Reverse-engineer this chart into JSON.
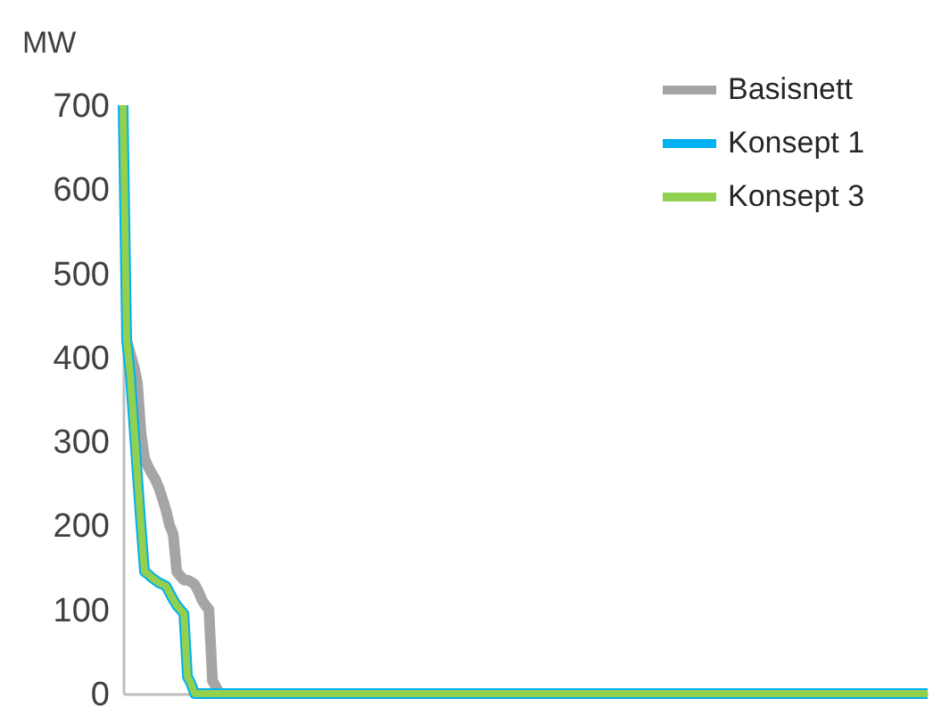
{
  "chart_data": {
    "type": "line",
    "ylabel": "MW",
    "ylim": [
      0,
      700
    ],
    "yticks": [
      0,
      100,
      200,
      300,
      400,
      500,
      600,
      700
    ],
    "grid": false,
    "legend": "top right",
    "marker": "none",
    "line_style": "solid",
    "categories": [
      null,
      null,
      null,
      null,
      null,
      null,
      null,
      null,
      null,
      null,
      null,
      null,
      null,
      null,
      null,
      null,
      null,
      null,
      null,
      null,
      null,
      null,
      null,
      null,
      null,
      null,
      null,
      null,
      null,
      null,
      null,
      null,
      null,
      null,
      null,
      null,
      null,
      null,
      null,
      null,
      null,
      null,
      null,
      null,
      null,
      null,
      null,
      null,
      null,
      null,
      null,
      null,
      null,
      null,
      null,
      null,
      null,
      null,
      null,
      null,
      null,
      null,
      null,
      null,
      null,
      null,
      null,
      null,
      null,
      null,
      null,
      null,
      null,
      null,
      null,
      null,
      null,
      null,
      null,
      null,
      null,
      null,
      null,
      null,
      null,
      null,
      null,
      null,
      null,
      null,
      null,
      null,
      null,
      null,
      null,
      null,
      null,
      null,
      null,
      null,
      null,
      null,
      null,
      null,
      null,
      null,
      null,
      null,
      null,
      null,
      null,
      null,
      null,
      null,
      null,
      null,
      null,
      null,
      null,
      null,
      null,
      null,
      null,
      null,
      null,
      null,
      null,
      null,
      null,
      null,
      null,
      null,
      null,
      null,
      null,
      null,
      null,
      null,
      null,
      null,
      null,
      null,
      null,
      null,
      null,
      null,
      null,
      null,
      null,
      null,
      null,
      null,
      null,
      null,
      null,
      null,
      null,
      null,
      null,
      null,
      null,
      null,
      null,
      null,
      null,
      null,
      null,
      null,
      null,
      null,
      null,
      null,
      null,
      null,
      null,
      null,
      null,
      null,
      null,
      null,
      null,
      null,
      null,
      null,
      null,
      null,
      null,
      null,
      null,
      null,
      null,
      null,
      null,
      null,
      null,
      null,
      null,
      null,
      null,
      null,
      null,
      null,
      null,
      null,
      null,
      null,
      null,
      null,
      null,
      null,
      null,
      null,
      null,
      null,
      null,
      null,
      null,
      null,
      null,
      null,
      null,
      null,
      null,
      null,
      null,
      null
    ],
    "series": [
      {
        "name": "Basisnett",
        "color": "#a5a5a5",
        "values": [
          null,
          420,
          405,
          390,
          370,
          310,
          280,
          270,
          262,
          255,
          245,
          232,
          218,
          200,
          190,
          145,
          140,
          135,
          135,
          133,
          130,
          122,
          112,
          105,
          100,
          15,
          8,
          0,
          null,
          null,
          null,
          null,
          null,
          null,
          null,
          null,
          null,
          null,
          null,
          null,
          null,
          null,
          null,
          null,
          null,
          null,
          null,
          null,
          null,
          null,
          null,
          null,
          null,
          null,
          null,
          null,
          null,
          null,
          null,
          null,
          null,
          null,
          null,
          null,
          null,
          null,
          null,
          null,
          null,
          null,
          null,
          null,
          null,
          null,
          null,
          null,
          null,
          null,
          null,
          null,
          null,
          null,
          null,
          null,
          null,
          null,
          null,
          null,
          null,
          null,
          null,
          null,
          null,
          null,
          null,
          null,
          null,
          null,
          null,
          null,
          null,
          null,
          null,
          null,
          null,
          null,
          null,
          null,
          null,
          null,
          null,
          null,
          null,
          null,
          null,
          null,
          null,
          null,
          null,
          null,
          null,
          null,
          null,
          null,
          null,
          null,
          null,
          null,
          null,
          null,
          null,
          null,
          null,
          null,
          null,
          null,
          null,
          null,
          null,
          null,
          null,
          null,
          null,
          null,
          null,
          null,
          null,
          null,
          null,
          null,
          null,
          null,
          null,
          null,
          null,
          null,
          null,
          null,
          null,
          null,
          null,
          null,
          null,
          null,
          null,
          null,
          null,
          null,
          null,
          null,
          null,
          null,
          null,
          null,
          null,
          null,
          null,
          null,
          null,
          null,
          null,
          null,
          null,
          null,
          null,
          null,
          null,
          null,
          null,
          null,
          null,
          null,
          null,
          null,
          null,
          null,
          null,
          null,
          null,
          null,
          null,
          null,
          null,
          null,
          null,
          null,
          null,
          null,
          null,
          null,
          null,
          null,
          null,
          null,
          null,
          null,
          null,
          null,
          null,
          null,
          null,
          null,
          null,
          null,
          null,
          null
        ]
      },
      {
        "name": "Konsept 1",
        "color": "#00b0f0",
        "values": [
          700,
          420,
          380,
          320,
          260,
          200,
          145,
          142,
          138,
          135,
          132,
          130,
          128,
          120,
          112,
          105,
          100,
          95,
          20,
          12,
          0,
          0,
          0,
          0,
          0,
          0,
          0,
          0,
          0,
          0,
          0,
          0,
          0,
          0,
          0,
          0,
          0,
          0,
          0,
          0,
          0,
          0,
          0,
          0,
          0,
          0,
          0,
          0,
          0,
          0,
          0,
          0,
          0,
          0,
          0,
          0,
          0,
          0,
          0,
          0,
          0,
          0,
          0,
          0,
          0,
          0,
          0,
          0,
          0,
          0,
          0,
          0,
          0,
          0,
          0,
          0,
          0,
          0,
          0,
          0,
          0,
          0,
          0,
          0,
          0,
          0,
          0,
          0,
          0,
          0,
          0,
          0,
          0,
          0,
          0,
          0,
          0,
          0,
          0,
          0,
          0,
          0,
          0,
          0,
          0,
          0,
          0,
          0,
          0,
          0,
          0,
          0,
          0,
          0,
          0,
          0,
          0,
          0,
          0,
          0,
          0,
          0,
          0,
          0,
          0,
          0,
          0,
          0,
          0,
          0,
          0,
          0,
          0,
          0,
          0,
          0,
          0,
          0,
          0,
          0,
          0,
          0,
          0,
          0,
          0,
          0,
          0,
          0,
          0,
          0,
          0,
          0,
          0,
          0,
          0,
          0,
          0,
          0,
          0,
          0,
          0,
          0,
          0,
          0,
          0,
          0,
          0,
          0,
          0,
          0,
          0,
          0,
          0,
          0,
          0,
          0,
          0,
          0,
          0,
          0,
          0,
          0,
          0,
          0,
          0,
          0,
          0,
          0,
          0,
          0,
          0,
          0,
          0,
          0,
          0,
          0,
          0,
          0,
          0,
          0,
          0,
          0,
          0,
          0,
          0,
          0,
          0,
          0,
          0,
          0,
          0,
          0,
          0,
          0,
          0,
          0,
          0,
          0,
          0,
          0,
          0,
          0,
          0,
          0,
          0,
          0
        ]
      },
      {
        "name": "Konsept 3",
        "color": "#92d050",
        "values": [
          700,
          420,
          380,
          320,
          260,
          200,
          145,
          142,
          138,
          135,
          132,
          130,
          128,
          120,
          112,
          105,
          100,
          95,
          20,
          12,
          0,
          0,
          0,
          0,
          0,
          0,
          0,
          0,
          0,
          0,
          0,
          0,
          0,
          0,
          0,
          0,
          0,
          0,
          0,
          0,
          0,
          0,
          0,
          0,
          0,
          0,
          0,
          0,
          0,
          0,
          0,
          0,
          0,
          0,
          0,
          0,
          0,
          0,
          0,
          0,
          0,
          0,
          0,
          0,
          0,
          0,
          0,
          0,
          0,
          0,
          0,
          0,
          0,
          0,
          0,
          0,
          0,
          0,
          0,
          0,
          0,
          0,
          0,
          0,
          0,
          0,
          0,
          0,
          0,
          0,
          0,
          0,
          0,
          0,
          0,
          0,
          0,
          0,
          0,
          0,
          0,
          0,
          0,
          0,
          0,
          0,
          0,
          0,
          0,
          0,
          0,
          0,
          0,
          0,
          0,
          0,
          0,
          0,
          0,
          0,
          0,
          0,
          0,
          0,
          0,
          0,
          0,
          0,
          0,
          0,
          0,
          0,
          0,
          0,
          0,
          0,
          0,
          0,
          0,
          0,
          0,
          0,
          0,
          0,
          0,
          0,
          0,
          0,
          0,
          0,
          0,
          0,
          0,
          0,
          0,
          0,
          0,
          0,
          0,
          0,
          0,
          0,
          0,
          0,
          0,
          0,
          0,
          0,
          0,
          0,
          0,
          0,
          0,
          0,
          0,
          0,
          0,
          0,
          0,
          0,
          0,
          0,
          0,
          0,
          0,
          0,
          0,
          0,
          0,
          0,
          0,
          0,
          0,
          0,
          0,
          0,
          0,
          0,
          0,
          0,
          0,
          0,
          0,
          0,
          0,
          0,
          0,
          0,
          0,
          0,
          0,
          0,
          0,
          0,
          0,
          0,
          0,
          0,
          0,
          0,
          0,
          0,
          0,
          0,
          0,
          0
        ]
      }
    ]
  }
}
